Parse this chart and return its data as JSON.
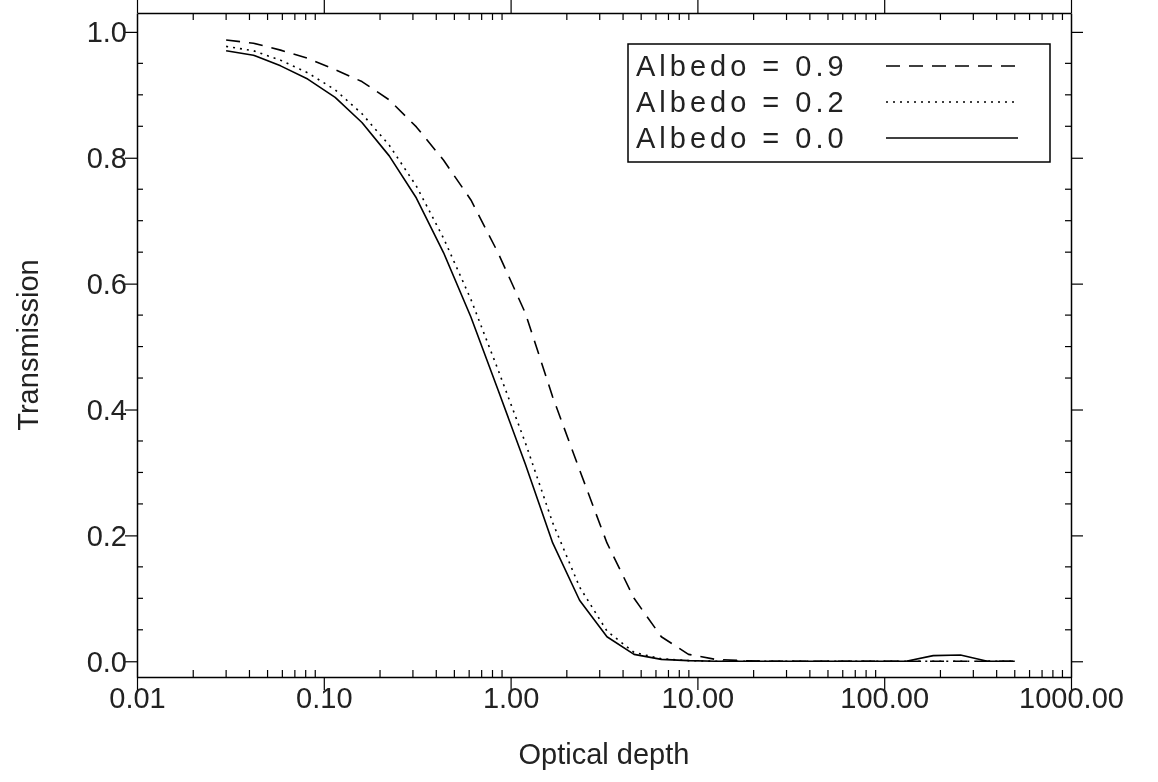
{
  "chart_data": {
    "type": "line",
    "xlabel": "Optical depth",
    "ylabel": "Transmission",
    "log": "x",
    "xlim": [
      0.01,
      1000
    ],
    "ylim": [
      -0.025,
      1.03
    ],
    "xticks": [
      {
        "value": 0.01,
        "label": "0.01"
      },
      {
        "value": 0.1,
        "label": "0.10"
      },
      {
        "value": 1,
        "label": "1.00"
      },
      {
        "value": 10,
        "label": "10.00"
      },
      {
        "value": 100,
        "label": "100.00"
      },
      {
        "value": 1000,
        "label": "1000.00"
      }
    ],
    "yticks": [
      {
        "value": 0,
        "label": "0.0"
      },
      {
        "value": 0.2,
        "label": "0.2"
      },
      {
        "value": 0.4,
        "label": "0.4"
      },
      {
        "value": 0.6,
        "label": "0.6"
      },
      {
        "value": 0.8,
        "label": "0.8"
      },
      {
        "value": 1,
        "label": "1.0"
      }
    ],
    "x": [
      0.03,
      0.042,
      0.0587,
      0.082,
      0.115,
      0.16,
      0.224,
      0.313,
      0.438,
      0.613,
      0.857,
      1.2,
      1.68,
      2.34,
      3.28,
      4.58,
      6.41,
      8.96,
      12.5,
      17.5,
      24.5,
      34.2,
      47.9,
      67,
      93.6,
      131,
      183,
      256,
      357,
      500
    ],
    "series": [
      {
        "name": "Albedo = 0.9",
        "color": "#000000",
        "line_style": "dashed",
        "values": [
          0.987,
          0.982,
          0.971,
          0.958,
          0.94,
          0.921,
          0.892,
          0.849,
          0.796,
          0.733,
          0.649,
          0.553,
          0.42,
          0.304,
          0.188,
          0.1,
          0.039,
          0.011,
          0.003,
          0.001,
          0,
          0,
          0,
          0,
          0,
          0,
          0,
          0,
          0,
          0
        ]
      },
      {
        "name": "Albedo = 0.2",
        "color": "#000000",
        "line_style": "dotted",
        "values": [
          0.977,
          0.97,
          0.955,
          0.935,
          0.908,
          0.87,
          0.82,
          0.755,
          0.672,
          0.575,
          0.463,
          0.347,
          0.22,
          0.118,
          0.048,
          0.014,
          0.004,
          0.001,
          0,
          0,
          0,
          0,
          0,
          0,
          0,
          0,
          0,
          0,
          0,
          0
        ]
      },
      {
        "name": "Albedo = 0.0",
        "color": "#000000",
        "line_style": "solid",
        "values": [
          0.97,
          0.963,
          0.946,
          0.925,
          0.896,
          0.856,
          0.803,
          0.736,
          0.649,
          0.547,
          0.431,
          0.313,
          0.188,
          0.097,
          0.039,
          0.011,
          0.003,
          0.001,
          0,
          0,
          0,
          0,
          0,
          0,
          0,
          0,
          0.009,
          0.01,
          0,
          0
        ]
      }
    ],
    "legend": "top right",
    "grid": false
  }
}
